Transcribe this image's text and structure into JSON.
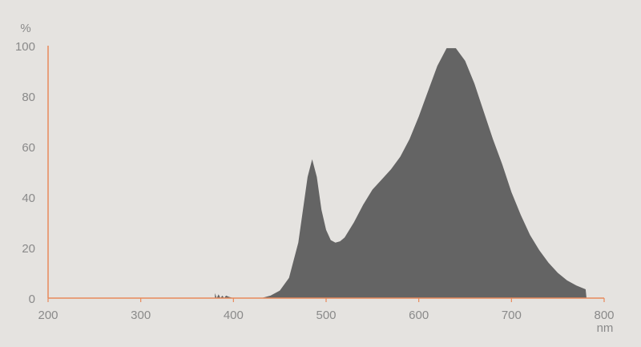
{
  "chart_data": {
    "type": "area",
    "title": "",
    "xlabel": "nm",
    "ylabel": "%",
    "xlim": [
      200,
      800
    ],
    "ylim": [
      0,
      100
    ],
    "x_ticks": [
      200,
      300,
      400,
      500,
      600,
      700,
      800
    ],
    "y_ticks": [
      0,
      20,
      40,
      60,
      80,
      100
    ],
    "grid": false,
    "colors": {
      "fill": "#646464",
      "axis": "#e8895a",
      "background": "#e5e3e0",
      "text": "#8a8a8a"
    },
    "series": [
      {
        "x": [
          380,
          382,
          384,
          386,
          388,
          390,
          392,
          395,
          400,
          410,
          420,
          430,
          440,
          450,
          460,
          470,
          475,
          480,
          485,
          490,
          495,
          500,
          505,
          510,
          515,
          520,
          530,
          540,
          550,
          560,
          570,
          580,
          590,
          600,
          610,
          620,
          630,
          640,
          650,
          660,
          670,
          680,
          690,
          700,
          710,
          720,
          730,
          740,
          750,
          760,
          770,
          780,
          781
        ],
        "y": [
          2,
          0,
          1.5,
          0,
          1,
          0,
          1,
          0.5,
          0,
          0,
          0,
          0,
          1,
          3,
          8,
          22,
          35,
          48,
          55,
          48,
          35,
          27,
          23,
          22,
          22.5,
          24,
          30,
          37,
          43,
          47,
          51,
          56,
          63,
          72,
          82,
          92,
          99,
          99,
          94,
          85,
          74,
          63,
          53,
          42,
          33,
          25,
          19,
          14,
          10,
          7,
          5,
          3.5,
          0
        ]
      }
    ]
  }
}
